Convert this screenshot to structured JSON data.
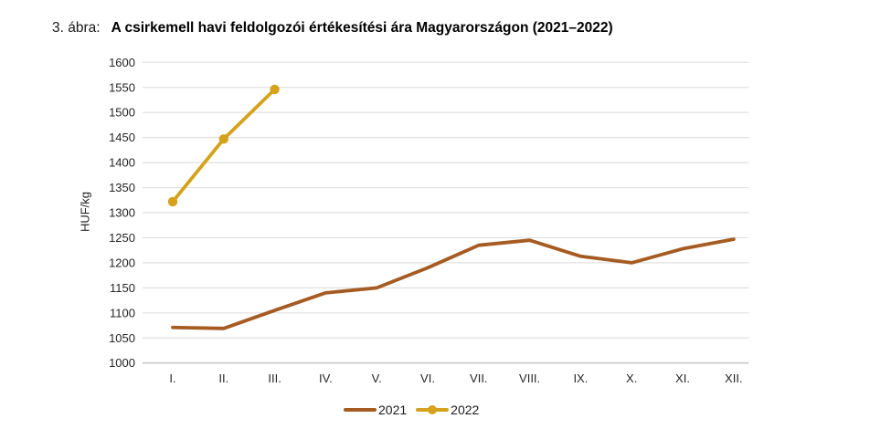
{
  "figure": {
    "label": "3. ábra:",
    "title": "A csirkemell havi feldolgozói értékesítési ára Magyarországon (2021–2022)"
  },
  "chart_data": {
    "type": "line",
    "title": "A csirkemell havi feldolgozói értékesítési ára Magyarországon (2021–2022)",
    "xlabel": "",
    "ylabel": "HUF/kg",
    "ylim": [
      1000,
      1600
    ],
    "ytick_step": 50,
    "grid": true,
    "legend_position": "bottom",
    "categories": [
      "I.",
      "II.",
      "III.",
      "IV.",
      "V.",
      "VI.",
      "VII.",
      "VIII.",
      "IX.",
      "X.",
      "XI.",
      "XII."
    ],
    "series": [
      {
        "name": "2021",
        "color": "#A55B22",
        "marker": false,
        "values": [
          1071,
          1069,
          1105,
          1140,
          1150,
          1190,
          1235,
          1245,
          1213,
          1200,
          1228,
          1247
        ]
      },
      {
        "name": "2022",
        "color": "#D5A21B",
        "marker": true,
        "values": [
          1322,
          1447,
          1546
        ]
      }
    ]
  },
  "colors": {
    "grid": "#E0E0E0",
    "axis": "#C8C8C8",
    "text": "#262626"
  }
}
